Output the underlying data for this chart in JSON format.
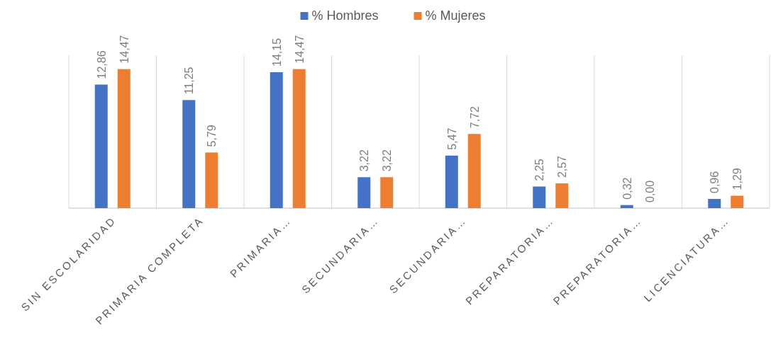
{
  "chart_data": {
    "type": "bar",
    "categories": [
      "SIN ESCOLARIDAD",
      "PRIMARIA COMPLETA",
      "PRIMARIA…",
      "SECUNDARIA…",
      "SECUNDARIA…",
      "PREPARATORIA…",
      "PREPARATORIA…",
      "LICENCIATURA…"
    ],
    "series": [
      {
        "name": "% Hombres",
        "color": "#4472c4",
        "values": [
          12.86,
          11.25,
          14.15,
          3.22,
          5.47,
          2.25,
          0.32,
          0.96
        ],
        "value_labels": [
          "12,86",
          "11,25",
          "14,15",
          "3,22",
          "5,47",
          "2,25",
          "0,32",
          "0,96"
        ]
      },
      {
        "name": "% Mujeres",
        "color": "#ed7d31",
        "values": [
          14.47,
          5.79,
          14.47,
          3.22,
          7.72,
          2.57,
          0.0,
          1.29
        ],
        "value_labels": [
          "14,47",
          "5,79",
          "14,47",
          "3,22",
          "7,72",
          "2,57",
          "0,00",
          "1,29"
        ]
      }
    ],
    "grid": "x",
    "legend": "top"
  }
}
